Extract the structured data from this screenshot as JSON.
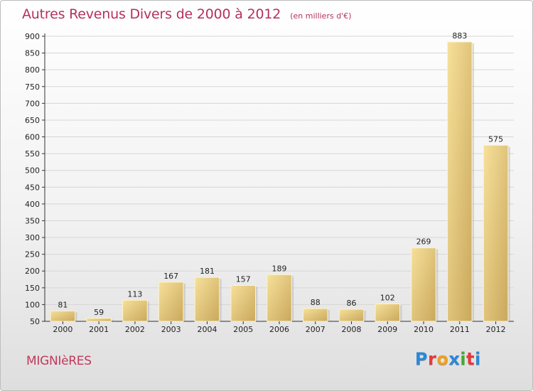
{
  "header": {
    "title": "Autres Revenus Divers de 2000 à 2012",
    "unit": "(en milliers d'€)"
  },
  "footer": {
    "place": "MIGNIèRES",
    "logo_letters": [
      "P",
      "r",
      "o",
      "x",
      "i",
      "t",
      "i"
    ],
    "logo_colors": [
      "#2b88d8",
      "#e8383d",
      "#f0a020",
      "#2b88d8",
      "#44aa33",
      "#e8383d",
      "#2b88d8"
    ]
  },
  "colors": {
    "title": "#b5315b",
    "bar_light": "#f7e09a",
    "bar_dark": "#c9a85c",
    "grid": "#d6d6d6",
    "axis": "#333333"
  },
  "chart_data": {
    "type": "bar",
    "title": "Autres Revenus Divers de 2000 à 2012",
    "xlabel": "",
    "ylabel": "",
    "ylim": [
      50,
      900
    ],
    "yticks": [
      50,
      100,
      150,
      200,
      250,
      300,
      350,
      400,
      450,
      500,
      550,
      600,
      650,
      700,
      750,
      800,
      850,
      900
    ],
    "grid": true,
    "categories": [
      "2000",
      "2001",
      "2002",
      "2003",
      "2004",
      "2005",
      "2006",
      "2007",
      "2008",
      "2009",
      "2010",
      "2011",
      "2012"
    ],
    "values": [
      81,
      59,
      113,
      167,
      181,
      157,
      189,
      88,
      86,
      102,
      269,
      883,
      575
    ]
  }
}
